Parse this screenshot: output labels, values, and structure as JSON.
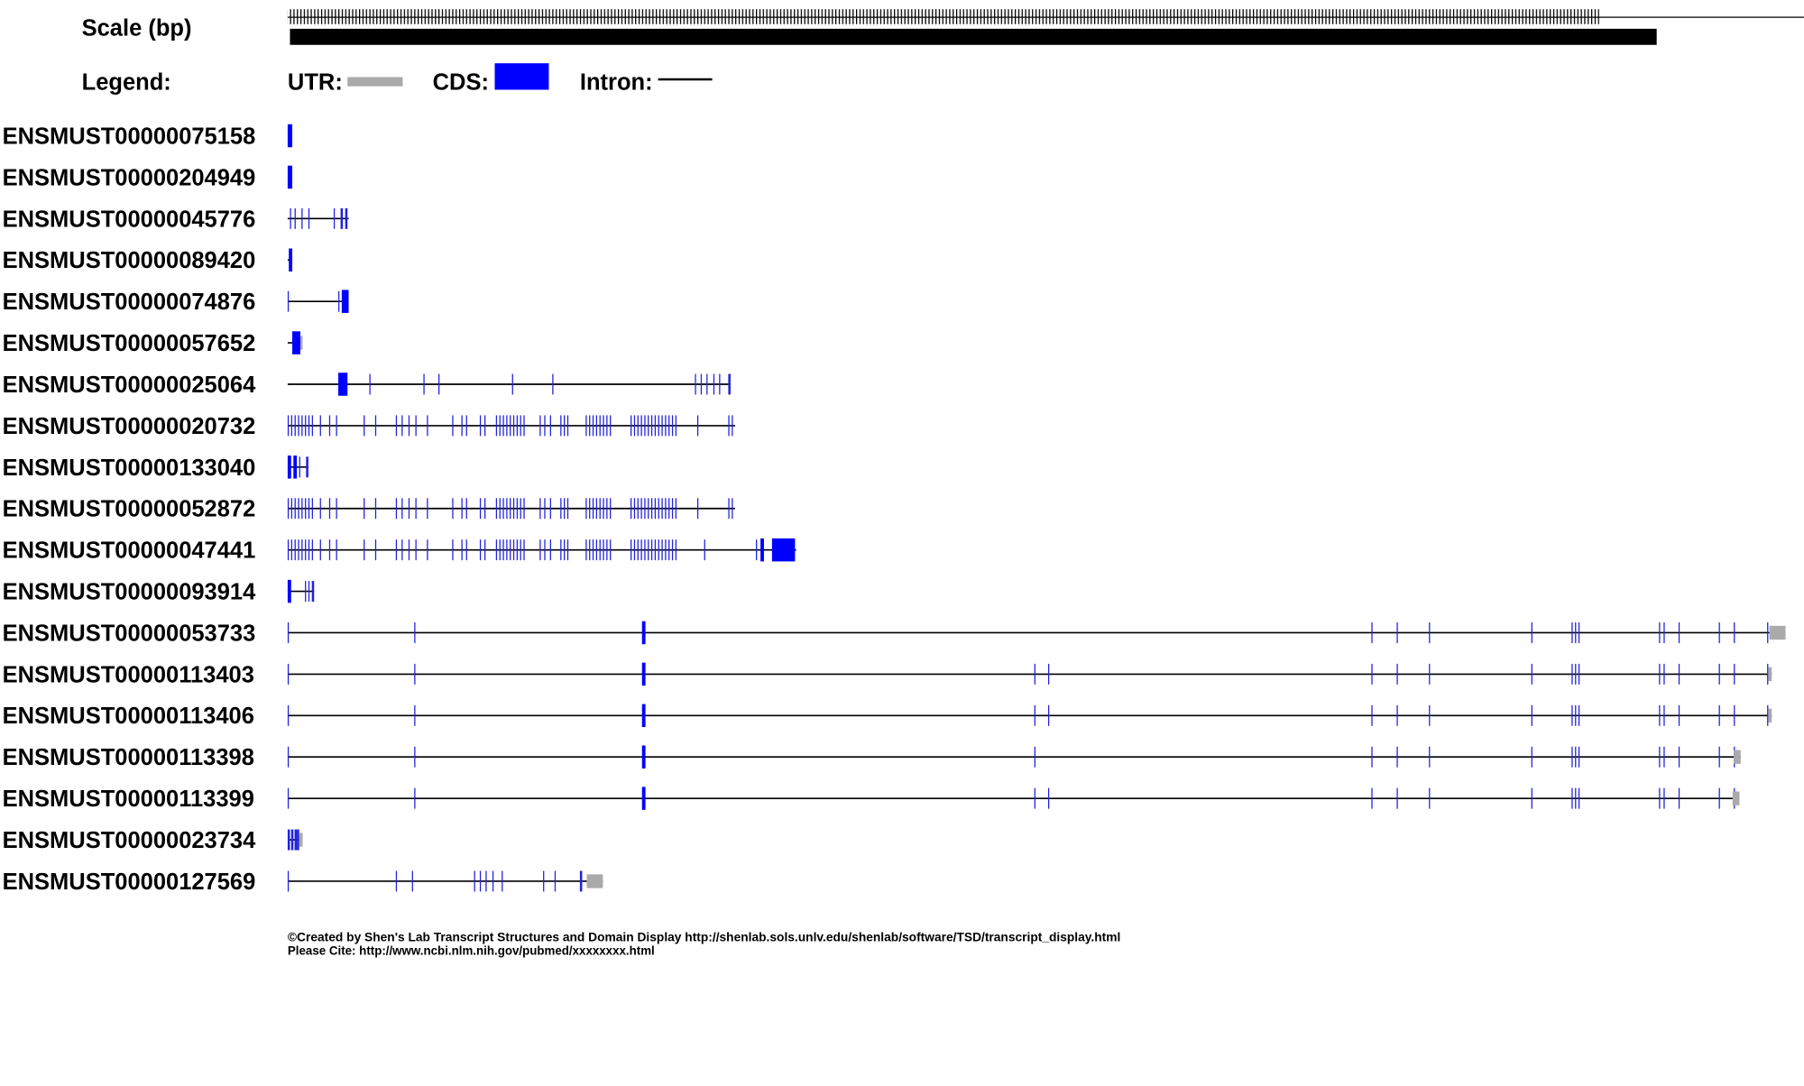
{
  "header": {
    "scale_label": "Scale (bp)",
    "legend_label": "Legend:",
    "legend": {
      "utr": "UTR:",
      "cds": "CDS:",
      "intron": "Intron:"
    }
  },
  "transcripts": [
    "ENSMUST00000075158",
    "ENSMUST00000204949",
    "ENSMUST00000045776",
    "ENSMUST00000089420",
    "ENSMUST00000074876",
    "ENSMUST00000057652",
    "ENSMUST00000025064",
    "ENSMUST00000020732",
    "ENSMUST00000133040",
    "ENSMUST00000052872",
    "ENSMUST00000047441",
    "ENSMUST00000093914",
    "ENSMUST00000053733",
    "ENSMUST00000113403",
    "ENSMUST00000113406",
    "ENSMUST00000113398",
    "ENSMUST00000113399",
    "ENSMUST00000023734",
    "ENSMUST00000127569"
  ],
  "footer": {
    "credit": "©Created by Shen's Lab Transcript Structures and Domain Display http://shenlab.sols.unlv.edu/shenlab/software/TSD/transcript_display.html",
    "cite": "Please Cite: http://www.ncbi.nlm.nih.gov/pubmed/xxxxxxxx.html"
  }
}
